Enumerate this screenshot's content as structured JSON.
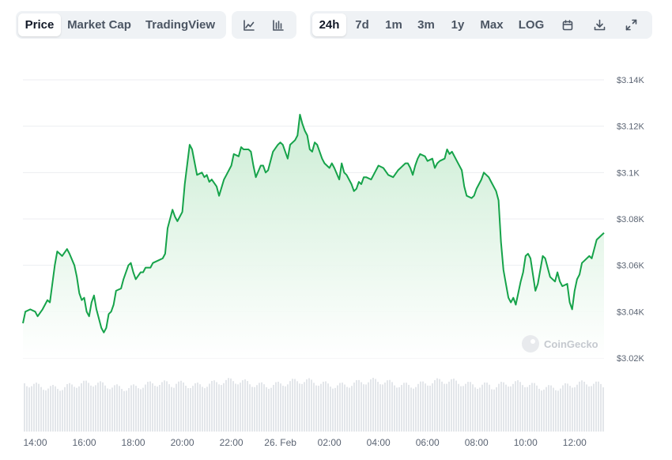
{
  "toolbar": {
    "view_tabs": [
      {
        "label": "Price",
        "active": true
      },
      {
        "label": "Market Cap",
        "active": false
      },
      {
        "label": "TradingView",
        "active": false
      }
    ],
    "chart_style_icons": [
      "line-chart-icon",
      "candlestick-chart-icon"
    ],
    "range_tabs": [
      {
        "label": "24h",
        "active": true
      },
      {
        "label": "7d",
        "active": false
      },
      {
        "label": "1m",
        "active": false
      },
      {
        "label": "3m",
        "active": false
      },
      {
        "label": "1y",
        "active": false
      },
      {
        "label": "Max",
        "active": false
      },
      {
        "label": "LOG",
        "active": false
      }
    ],
    "tool_icons": [
      "calendar-icon",
      "download-icon",
      "expand-icon"
    ]
  },
  "watermark": "CoinGecko",
  "colors": {
    "line": "#16a34a",
    "fill_top": "#c9ecd2",
    "volume": "#e3e6ea",
    "grid": "#eceef1",
    "accent_bg": "#eff2f5"
  },
  "chart_data": {
    "type": "area",
    "title": "",
    "xlabel": "",
    "ylabel": "",
    "x_ticks": [
      "14:00",
      "16:00",
      "18:00",
      "20:00",
      "22:00",
      "26. Feb",
      "02:00",
      "04:00",
      "06:00",
      "08:00",
      "10:00",
      "12:00"
    ],
    "y_ticks": [
      "$3.02K",
      "$3.04K",
      "$3.06K",
      "$3.08K",
      "$3.1K",
      "$3.12K",
      "$3.14K"
    ],
    "ylim": [
      3020,
      3140
    ],
    "x_range_hours": [
      13.5,
      37.2
    ],
    "grid": true,
    "series": [
      {
        "values": [
          [
            13.5,
            3035
          ],
          [
            13.6,
            3040
          ],
          [
            13.8,
            3041
          ],
          [
            14.0,
            3040
          ],
          [
            14.1,
            3038
          ],
          [
            14.3,
            3041
          ],
          [
            14.5,
            3045
          ],
          [
            14.6,
            3044
          ],
          [
            14.8,
            3060
          ],
          [
            14.9,
            3066
          ],
          [
            15.1,
            3064
          ],
          [
            15.3,
            3067
          ],
          [
            15.4,
            3065
          ],
          [
            15.6,
            3060
          ],
          [
            15.7,
            3055
          ],
          [
            15.8,
            3048
          ],
          [
            15.9,
            3045
          ],
          [
            16.0,
            3046
          ],
          [
            16.1,
            3040
          ],
          [
            16.2,
            3038
          ],
          [
            16.3,
            3044
          ],
          [
            16.4,
            3047
          ],
          [
            16.5,
            3041
          ],
          [
            16.7,
            3033
          ],
          [
            16.8,
            3031
          ],
          [
            16.9,
            3033
          ],
          [
            17.0,
            3039
          ],
          [
            17.1,
            3040
          ],
          [
            17.2,
            3043
          ],
          [
            17.3,
            3049
          ],
          [
            17.5,
            3050
          ],
          [
            17.6,
            3054
          ],
          [
            17.8,
            3060
          ],
          [
            17.9,
            3061
          ],
          [
            18.0,
            3057
          ],
          [
            18.1,
            3054
          ],
          [
            18.3,
            3057
          ],
          [
            18.4,
            3057
          ],
          [
            18.5,
            3059
          ],
          [
            18.7,
            3059
          ],
          [
            18.8,
            3061
          ],
          [
            19.0,
            3062
          ],
          [
            19.2,
            3063
          ],
          [
            19.3,
            3065
          ],
          [
            19.4,
            3076
          ],
          [
            19.6,
            3084
          ],
          [
            19.7,
            3081
          ],
          [
            19.8,
            3079
          ],
          [
            20.0,
            3083
          ],
          [
            20.1,
            3095
          ],
          [
            20.3,
            3112
          ],
          [
            20.4,
            3110
          ],
          [
            20.6,
            3099
          ],
          [
            20.8,
            3100
          ],
          [
            20.9,
            3098
          ],
          [
            21.0,
            3099
          ],
          [
            21.1,
            3096
          ],
          [
            21.2,
            3097
          ],
          [
            21.4,
            3094
          ],
          [
            21.5,
            3090
          ],
          [
            21.7,
            3097
          ],
          [
            21.8,
            3099
          ],
          [
            22.0,
            3103
          ],
          [
            22.1,
            3108
          ],
          [
            22.3,
            3107
          ],
          [
            22.4,
            3111
          ],
          [
            22.5,
            3110
          ],
          [
            22.7,
            3110
          ],
          [
            22.8,
            3109
          ],
          [
            22.9,
            3103
          ],
          [
            23.0,
            3098
          ],
          [
            23.2,
            3103
          ],
          [
            23.3,
            3103
          ],
          [
            23.4,
            3100
          ],
          [
            23.5,
            3101
          ],
          [
            23.7,
            3109
          ],
          [
            23.9,
            3112
          ],
          [
            24.0,
            3113
          ],
          [
            24.1,
            3112
          ],
          [
            24.2,
            3109
          ],
          [
            24.3,
            3106
          ],
          [
            24.4,
            3112
          ],
          [
            24.6,
            3114
          ],
          [
            24.7,
            3116
          ],
          [
            24.8,
            3125
          ],
          [
            24.9,
            3121
          ],
          [
            25.0,
            3118
          ],
          [
            25.1,
            3116
          ],
          [
            25.2,
            3110
          ],
          [
            25.3,
            3109
          ],
          [
            25.4,
            3113
          ],
          [
            25.5,
            3112
          ],
          [
            25.7,
            3106
          ],
          [
            25.8,
            3104
          ],
          [
            26.0,
            3102
          ],
          [
            26.1,
            3104
          ],
          [
            26.2,
            3102
          ],
          [
            26.4,
            3097
          ],
          [
            26.5,
            3104
          ],
          [
            26.6,
            3100
          ],
          [
            26.7,
            3099
          ],
          [
            26.9,
            3095
          ],
          [
            27.0,
            3092
          ],
          [
            27.1,
            3093
          ],
          [
            27.2,
            3096
          ],
          [
            27.3,
            3095
          ],
          [
            27.4,
            3098
          ],
          [
            27.5,
            3098
          ],
          [
            27.7,
            3097
          ],
          [
            27.8,
            3099
          ],
          [
            28.0,
            3103
          ],
          [
            28.2,
            3102
          ],
          [
            28.4,
            3099
          ],
          [
            28.6,
            3098
          ],
          [
            28.8,
            3101
          ],
          [
            28.9,
            3102
          ],
          [
            29.1,
            3104
          ],
          [
            29.2,
            3104
          ],
          [
            29.3,
            3102
          ],
          [
            29.4,
            3099
          ],
          [
            29.5,
            3103
          ],
          [
            29.6,
            3106
          ],
          [
            29.7,
            3108
          ],
          [
            29.9,
            3107
          ],
          [
            30.0,
            3105
          ],
          [
            30.2,
            3106
          ],
          [
            30.3,
            3102
          ],
          [
            30.4,
            3104
          ],
          [
            30.5,
            3105
          ],
          [
            30.7,
            3106
          ],
          [
            30.8,
            3110
          ],
          [
            30.9,
            3108
          ],
          [
            31.0,
            3109
          ],
          [
            31.2,
            3105
          ],
          [
            31.4,
            3101
          ],
          [
            31.5,
            3094
          ],
          [
            31.6,
            3090
          ],
          [
            31.8,
            3089
          ],
          [
            31.9,
            3090
          ],
          [
            32.0,
            3093
          ],
          [
            32.2,
            3097
          ],
          [
            32.3,
            3100
          ],
          [
            32.5,
            3098
          ],
          [
            32.6,
            3096
          ],
          [
            32.8,
            3092
          ],
          [
            32.9,
            3088
          ],
          [
            33.0,
            3070
          ],
          [
            33.1,
            3058
          ],
          [
            33.2,
            3052
          ],
          [
            33.3,
            3046
          ],
          [
            33.4,
            3044
          ],
          [
            33.5,
            3046
          ],
          [
            33.6,
            3043
          ],
          [
            33.7,
            3048
          ],
          [
            33.8,
            3053
          ],
          [
            33.9,
            3057
          ],
          [
            34.0,
            3064
          ],
          [
            34.1,
            3065
          ],
          [
            34.2,
            3063
          ],
          [
            34.3,
            3056
          ],
          [
            34.4,
            3049
          ],
          [
            34.5,
            3052
          ],
          [
            34.6,
            3058
          ],
          [
            34.7,
            3064
          ],
          [
            34.8,
            3063
          ],
          [
            34.9,
            3059
          ],
          [
            35.0,
            3055
          ],
          [
            35.2,
            3053
          ],
          [
            35.3,
            3057
          ],
          [
            35.4,
            3053
          ],
          [
            35.5,
            3051
          ],
          [
            35.7,
            3052
          ],
          [
            35.8,
            3044
          ],
          [
            35.9,
            3041
          ],
          [
            36.0,
            3049
          ],
          [
            36.1,
            3054
          ],
          [
            36.2,
            3056
          ],
          [
            36.3,
            3061
          ],
          [
            36.4,
            3062
          ],
          [
            36.6,
            3064
          ],
          [
            36.7,
            3063
          ],
          [
            36.8,
            3067
          ],
          [
            36.9,
            3071
          ],
          [
            37.1,
            3073
          ],
          [
            37.2,
            3074
          ]
        ]
      }
    ]
  }
}
